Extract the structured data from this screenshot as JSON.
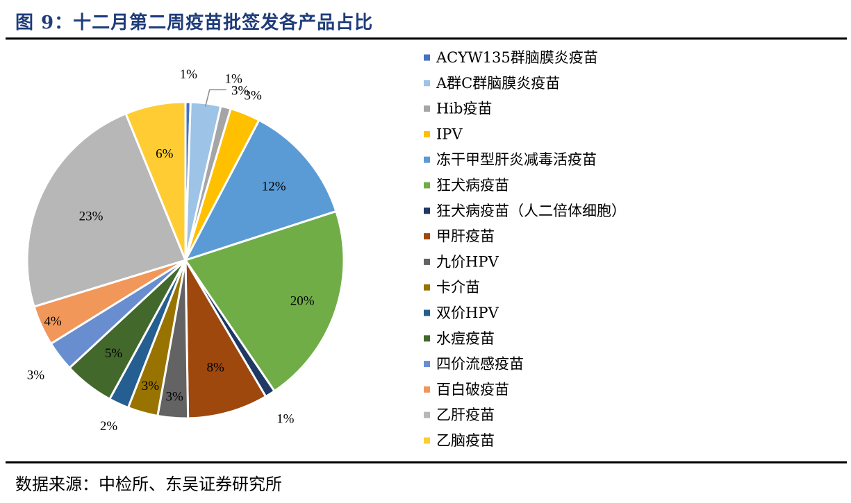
{
  "title": "图 9：十二月第二周疫苗批签发各产品占比",
  "source": "数据来源：中检所、东吴证券研究所",
  "chart_data": {
    "type": "pie",
    "title": "十二月第二周疫苗批签发各产品占比",
    "unit": "%",
    "legend_position": "right",
    "slices": [
      {
        "name": "ACYW135群脑膜炎疫苗",
        "value": 0.5,
        "label": "1%",
        "color": "#4472c4"
      },
      {
        "name": "A群C群脑膜炎疫苗",
        "value": 3,
        "label": "3%",
        "color": "#9dc3e6"
      },
      {
        "name": "Hib疫苗",
        "value": 1,
        "label": "1%",
        "color": "#a5a5a5"
      },
      {
        "name": "IPV",
        "value": 3,
        "label": "3%",
        "color": "#ffc000"
      },
      {
        "name": "冻干甲型肝炎减毒活疫苗",
        "value": 12,
        "label": "12%",
        "color": "#5b9bd5"
      },
      {
        "name": "狂犬病疫苗",
        "value": 20,
        "label": "20%",
        "color": "#70ad47"
      },
      {
        "name": "狂犬病疫苗（人二倍体细胞）",
        "value": 1,
        "label": "1%",
        "color": "#1f3864"
      },
      {
        "name": "甲肝疫苗",
        "value": 8,
        "label": "8%",
        "color": "#9e480e"
      },
      {
        "name": "九价HPV",
        "value": 3,
        "label": "3%",
        "color": "#636363"
      },
      {
        "name": "卡介苗",
        "value": 3,
        "label": "3%",
        "color": "#997300"
      },
      {
        "name": "双价HPV",
        "value": 2,
        "label": "2%",
        "color": "#255e91"
      },
      {
        "name": "水痘疫苗",
        "value": 5,
        "label": "5%",
        "color": "#43682b"
      },
      {
        "name": "四价流感疫苗",
        "value": 3,
        "label": "3%",
        "color": "#698ed0"
      },
      {
        "name": "百白破疫苗",
        "value": 4,
        "label": "4%",
        "color": "#f1975a"
      },
      {
        "name": "乙肝疫苗",
        "value": 23,
        "label": "23%",
        "color": "#b7b7b7"
      },
      {
        "name": "乙脑疫苗",
        "value": 6,
        "label": "6%",
        "color": "#ffcd33"
      }
    ]
  }
}
